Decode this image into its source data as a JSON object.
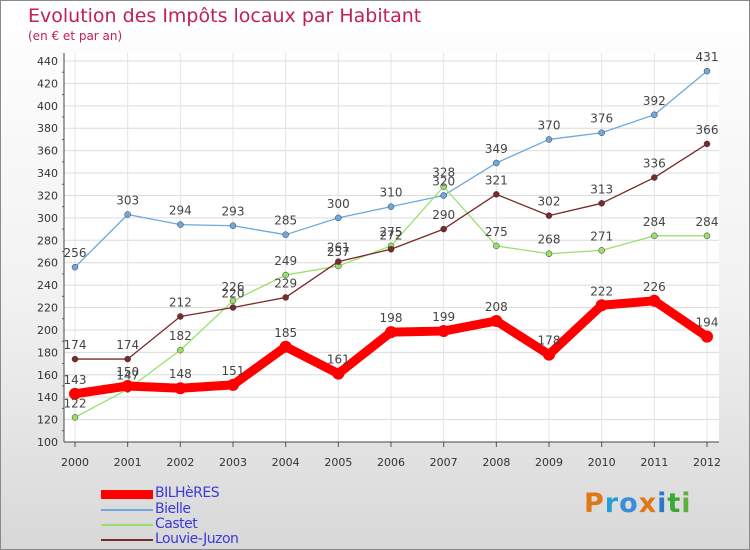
{
  "title": "Evolution des Impôts locaux par Habitant",
  "subtitle": "(en € et par an)",
  "logo": {
    "text": "Proxiti",
    "letter_colors": [
      "#e07818",
      "#1fa0d8",
      "#3a8ed8",
      "#e07818",
      "#2a78c8",
      "#3aa838",
      "#5fb03a"
    ]
  },
  "chart_data": {
    "type": "line",
    "x": [
      "2000",
      "2001",
      "2002",
      "2003",
      "2004",
      "2005",
      "2006",
      "2007",
      "2008",
      "2009",
      "2010",
      "2011",
      "2012"
    ],
    "ylim": [
      100,
      440
    ],
    "yticks": [
      100,
      120,
      140,
      160,
      180,
      200,
      220,
      240,
      260,
      280,
      300,
      320,
      340,
      360,
      380,
      400,
      420,
      440
    ],
    "grid": true,
    "legend_position": "bottom-left",
    "series": [
      {
        "name": "BILHèRES",
        "color": "#ff0000",
        "values": [
          143,
          150,
          148,
          151,
          185,
          161,
          198,
          199,
          208,
          178,
          222,
          226,
          194
        ]
      },
      {
        "name": "Bielle",
        "color": "#6fa8dc",
        "values": [
          256,
          303,
          294,
          293,
          285,
          300,
          310,
          320,
          349,
          370,
          376,
          392,
          431
        ]
      },
      {
        "name": "Castet",
        "color": "#99e06b",
        "values": [
          122,
          147,
          182,
          226,
          249,
          257,
          275,
          328,
          275,
          268,
          271,
          284,
          284
        ]
      },
      {
        "name": "Louvie-Juzon",
        "color": "#7a2a2a",
        "values": [
          174,
          174,
          212,
          220,
          229,
          261,
          272,
          290,
          321,
          302,
          313,
          336,
          366
        ]
      }
    ]
  }
}
